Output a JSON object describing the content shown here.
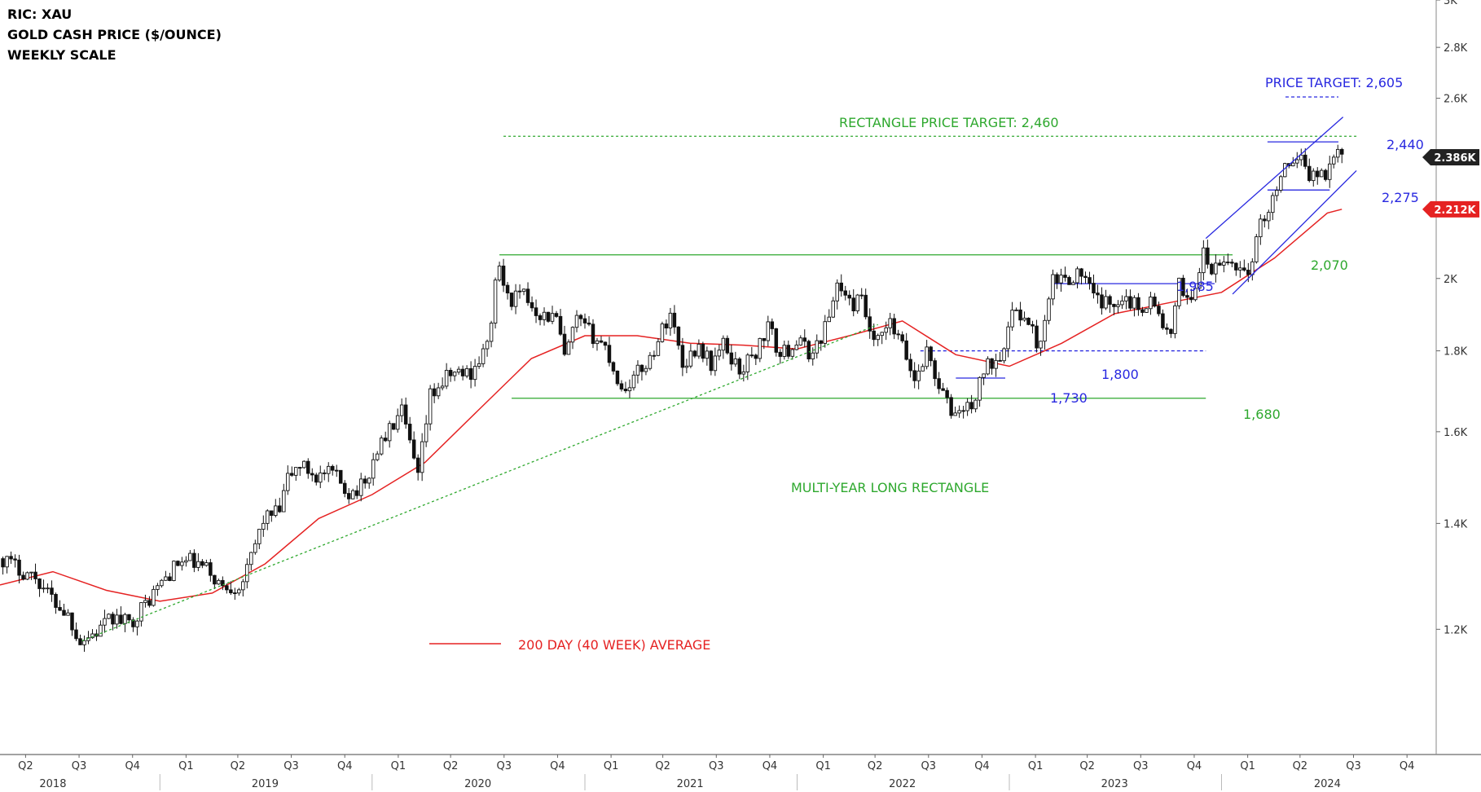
{
  "header": {
    "ric": "RIC: XAU",
    "instrument": "GOLD CASH PRICE ($/OUNCE)",
    "scale": "WEEKLY SCALE"
  },
  "chart_data": {
    "type": "candlestick",
    "y_scale": "log",
    "ylim": [
      1000,
      3000
    ],
    "y_ticks": [
      {
        "value": 1200,
        "label": "1.2K"
      },
      {
        "value": 1400,
        "label": "1.4K"
      },
      {
        "value": 1600,
        "label": "1.6K"
      },
      {
        "value": 1800,
        "label": "1.8K"
      },
      {
        "value": 2000,
        "label": "2K"
      },
      {
        "value": 2200,
        "label": "2.2K"
      },
      {
        "value": 2400,
        "label": "2.4K"
      },
      {
        "value": 2600,
        "label": "2.6K"
      },
      {
        "value": 2800,
        "label": "2.8K"
      },
      {
        "value": 3000,
        "label": "3K"
      }
    ],
    "x_range": [
      "2018-04-01",
      "2024-12-31"
    ],
    "quarters": [
      {
        "label": "Q2",
        "date": "2018-05-15"
      },
      {
        "label": "Q3",
        "date": "2018-08-15"
      },
      {
        "label": "Q4",
        "date": "2018-11-15"
      },
      {
        "label": "Q1",
        "date": "2019-02-15"
      },
      {
        "label": "Q2",
        "date": "2019-05-15"
      },
      {
        "label": "Q3",
        "date": "2019-08-15"
      },
      {
        "label": "Q4",
        "date": "2019-11-15"
      },
      {
        "label": "Q1",
        "date": "2020-02-15"
      },
      {
        "label": "Q2",
        "date": "2020-05-15"
      },
      {
        "label": "Q3",
        "date": "2020-08-15"
      },
      {
        "label": "Q4",
        "date": "2020-11-15"
      },
      {
        "label": "Q1",
        "date": "2021-02-15"
      },
      {
        "label": "Q2",
        "date": "2021-05-15"
      },
      {
        "label": "Q3",
        "date": "2021-08-15"
      },
      {
        "label": "Q4",
        "date": "2021-11-15"
      },
      {
        "label": "Q1",
        "date": "2022-02-15"
      },
      {
        "label": "Q2",
        "date": "2022-05-15"
      },
      {
        "label": "Q3",
        "date": "2022-08-15"
      },
      {
        "label": "Q4",
        "date": "2022-11-15"
      },
      {
        "label": "Q1",
        "date": "2023-02-15"
      },
      {
        "label": "Q2",
        "date": "2023-05-15"
      },
      {
        "label": "Q3",
        "date": "2023-08-15"
      },
      {
        "label": "Q4",
        "date": "2023-11-15"
      },
      {
        "label": "Q1",
        "date": "2024-02-15"
      },
      {
        "label": "Q2",
        "date": "2024-05-15"
      },
      {
        "label": "Q3",
        "date": "2024-08-15"
      },
      {
        "label": "Q4",
        "date": "2024-11-15"
      }
    ],
    "years": [
      {
        "label": "2018",
        "date": "2018-07-01"
      },
      {
        "label": "2019",
        "date": "2019-07-01"
      },
      {
        "label": "2020",
        "date": "2020-07-01"
      },
      {
        "label": "2021",
        "date": "2021-07-01"
      },
      {
        "label": "2022",
        "date": "2022-07-01"
      },
      {
        "label": "2023",
        "date": "2023-07-01"
      },
      {
        "label": "2024",
        "date": "2024-07-01"
      }
    ],
    "price_path": [
      [
        "2018-04-06",
        1330
      ],
      [
        "2018-05-04",
        1310
      ],
      [
        "2018-06-01",
        1295
      ],
      [
        "2018-06-29",
        1255
      ],
      [
        "2018-07-27",
        1225
      ],
      [
        "2018-08-17",
        1180
      ],
      [
        "2018-09-14",
        1195
      ],
      [
        "2018-10-12",
        1220
      ],
      [
        "2018-11-09",
        1210
      ],
      [
        "2018-12-07",
        1245
      ],
      [
        "2019-01-04",
        1285
      ],
      [
        "2019-02-01",
        1320
      ],
      [
        "2019-02-22",
        1325
      ],
      [
        "2019-03-22",
        1310
      ],
      [
        "2019-04-19",
        1275
      ],
      [
        "2019-05-17",
        1280
      ],
      [
        "2019-05-31",
        1305
      ],
      [
        "2019-06-28",
        1410
      ],
      [
        "2019-07-26",
        1425
      ],
      [
        "2019-08-09",
        1495
      ],
      [
        "2019-08-30",
        1525
      ],
      [
        "2019-09-27",
        1500
      ],
      [
        "2019-10-25",
        1505
      ],
      [
        "2019-11-22",
        1465
      ],
      [
        "2019-12-20",
        1480
      ],
      [
        "2020-01-10",
        1560
      ],
      [
        "2020-02-21",
        1645
      ],
      [
        "2020-03-13",
        1530
      ],
      [
        "2020-03-20",
        1495
      ],
      [
        "2020-04-10",
        1685
      ],
      [
        "2020-05-15",
        1740
      ],
      [
        "2020-06-19",
        1745
      ],
      [
        "2020-07-17",
        1810
      ],
      [
        "2020-07-31",
        1975
      ],
      [
        "2020-08-07",
        2035
      ],
      [
        "2020-08-21",
        1940
      ],
      [
        "2020-09-18",
        1950
      ],
      [
        "2020-10-16",
        1900
      ],
      [
        "2020-11-13",
        1885
      ],
      [
        "2020-11-27",
        1780
      ],
      [
        "2020-12-18",
        1880
      ],
      [
        "2021-01-08",
        1850
      ],
      [
        "2021-02-05",
        1810
      ],
      [
        "2021-03-05",
        1700
      ],
      [
        "2021-03-26",
        1730
      ],
      [
        "2021-04-23",
        1780
      ],
      [
        "2021-05-28",
        1905
      ],
      [
        "2021-06-18",
        1765
      ],
      [
        "2021-07-16",
        1815
      ],
      [
        "2021-08-06",
        1765
      ],
      [
        "2021-08-27",
        1815
      ],
      [
        "2021-09-24",
        1750
      ],
      [
        "2021-10-22",
        1795
      ],
      [
        "2021-11-12",
        1865
      ],
      [
        "2021-12-03",
        1785
      ],
      [
        "2021-12-31",
        1825
      ],
      [
        "2022-01-28",
        1790
      ],
      [
        "2022-02-25",
        1890
      ],
      [
        "2022-03-11",
        1990
      ],
      [
        "2022-04-01",
        1925
      ],
      [
        "2022-04-22",
        1935
      ],
      [
        "2022-05-13",
        1810
      ],
      [
        "2022-06-10",
        1870
      ],
      [
        "2022-07-01",
        1810
      ],
      [
        "2022-07-22",
        1725
      ],
      [
        "2022-08-12",
        1800
      ],
      [
        "2022-09-02",
        1710
      ],
      [
        "2022-09-23",
        1645
      ],
      [
        "2022-10-21",
        1655
      ],
      [
        "2022-11-04",
        1680
      ],
      [
        "2022-11-18",
        1750
      ],
      [
        "2022-12-16",
        1795
      ],
      [
        "2023-01-13",
        1920
      ],
      [
        "2023-02-03",
        1865
      ],
      [
        "2023-02-24",
        1810
      ],
      [
        "2023-03-17",
        1990
      ],
      [
        "2023-04-14",
        2005
      ],
      [
        "2023-05-05",
        2015
      ],
      [
        "2023-05-26",
        1945
      ],
      [
        "2023-06-23",
        1920
      ],
      [
        "2023-07-14",
        1955
      ],
      [
        "2023-08-11",
        1915
      ],
      [
        "2023-09-01",
        1940
      ],
      [
        "2023-09-29",
        1850
      ],
      [
        "2023-10-06",
        1830
      ],
      [
        "2023-10-20",
        1980
      ],
      [
        "2023-11-10",
        1940
      ],
      [
        "2023-12-01",
        2070
      ],
      [
        "2023-12-15",
        2020
      ],
      [
        "2024-01-12",
        2050
      ],
      [
        "2024-02-09",
        2025
      ],
      [
        "2024-02-23",
        2035
      ],
      [
        "2024-03-08",
        2180
      ],
      [
        "2024-03-29",
        2235
      ],
      [
        "2024-04-12",
        2340
      ],
      [
        "2024-04-26",
        2335
      ],
      [
        "2024-05-10",
        2355
      ],
      [
        "2024-05-17",
        2415
      ],
      [
        "2024-05-31",
        2325
      ],
      [
        "2024-06-14",
        2330
      ],
      [
        "2024-06-28",
        2325
      ],
      [
        "2024-07-12",
        2410
      ],
      [
        "2024-07-26",
        2385
      ]
    ],
    "moving_average": [
      [
        "2018-04-01",
        1280
      ],
      [
        "2018-07-01",
        1305
      ],
      [
        "2018-10-01",
        1270
      ],
      [
        "2019-01-01",
        1250
      ],
      [
        "2019-04-01",
        1265
      ],
      [
        "2019-07-01",
        1320
      ],
      [
        "2019-10-01",
        1410
      ],
      [
        "2020-01-01",
        1460
      ],
      [
        "2020-04-01",
        1530
      ],
      [
        "2020-07-01",
        1650
      ],
      [
        "2020-10-01",
        1780
      ],
      [
        "2021-01-01",
        1840
      ],
      [
        "2021-04-01",
        1840
      ],
      [
        "2021-07-01",
        1820
      ],
      [
        "2021-10-01",
        1815
      ],
      [
        "2022-01-01",
        1805
      ],
      [
        "2022-04-01",
        1840
      ],
      [
        "2022-07-01",
        1880
      ],
      [
        "2022-10-01",
        1790
      ],
      [
        "2023-01-01",
        1760
      ],
      [
        "2023-04-01",
        1820
      ],
      [
        "2023-07-01",
        1900
      ],
      [
        "2023-10-01",
        1930
      ],
      [
        "2024-01-01",
        1960
      ],
      [
        "2024-04-01",
        2060
      ],
      [
        "2024-07-01",
        2200
      ],
      [
        "2024-07-26",
        2212
      ]
    ],
    "last_price": {
      "value": 2386,
      "label": "2.386K",
      "color": "#222222"
    },
    "ma_last": {
      "value": 2212,
      "label": "2.212K",
      "color": "#e52222"
    },
    "colors": {
      "candle": "#111111",
      "moving_average": "#e52222",
      "rectangle": "#2ea82e",
      "channel": "#2929e0",
      "target": "#2929e0"
    },
    "levels": [
      {
        "name": "rectangle-top",
        "value": 2070,
        "from": "2020-08-07",
        "to": "2024-01-20",
        "color": "green",
        "style": "solid"
      },
      {
        "name": "rectangle-bottom",
        "value": 1680,
        "from": "2020-08-28",
        "to": "2023-12-05",
        "color": "green",
        "style": "solid"
      },
      {
        "name": "rectangle-target",
        "value": 2460,
        "from": "2020-08-14",
        "to": "2024-08-20",
        "color": "green",
        "style": "dotted"
      },
      {
        "name": "level-1985",
        "value": 1985,
        "from": "2023-03-15",
        "to": "2023-12-20",
        "color": "blue",
        "style": "solid"
      },
      {
        "name": "level-1800",
        "value": 1800,
        "from": "2022-08-01",
        "to": "2023-12-05",
        "color": "blue",
        "style": "dashed"
      },
      {
        "name": "level-1730",
        "value": 1730,
        "from": "2022-10-01",
        "to": "2022-12-25",
        "color": "blue",
        "style": "solid"
      },
      {
        "name": "level-2440",
        "value": 2440,
        "from": "2024-03-20",
        "to": "2024-07-20",
        "color": "blue",
        "style": "solid"
      },
      {
        "name": "level-2275",
        "value": 2275,
        "from": "2024-03-20",
        "to": "2024-07-05",
        "color": "blue",
        "style": "solid"
      },
      {
        "name": "price-target-2605",
        "value": 2605,
        "from": "2024-04-20",
        "to": "2024-07-20",
        "color": "blue",
        "style": "dashed"
      }
    ],
    "trendlines": [
      {
        "name": "support-trendline",
        "from": [
          "2018-08-20",
          1180
        ],
        "to": [
          "2022-05-20",
          1870
        ],
        "color": "green",
        "style": "dotted"
      },
      {
        "name": "channel-upper",
        "from": [
          "2023-12-05",
          2120
        ],
        "to": [
          "2024-07-28",
          2530
        ],
        "color": "blue",
        "style": "solid"
      },
      {
        "name": "channel-lower",
        "from": [
          "2024-01-20",
          1955
        ],
        "to": [
          "2024-08-20",
          2340
        ],
        "color": "blue",
        "style": "solid"
      }
    ],
    "annotations": [
      {
        "name": "price-target-label",
        "text": "PRICE TARGET: 2,605",
        "color": "blue"
      },
      {
        "name": "rectangle-target-label",
        "text": "RECTANGLE PRICE TARGET: 2,460",
        "color": "green"
      },
      {
        "name": "level-2440-label",
        "text": "2,440",
        "color": "blue"
      },
      {
        "name": "level-2275-label",
        "text": "2,275",
        "color": "blue"
      },
      {
        "name": "level-2070-label",
        "text": "2,070",
        "color": "green"
      },
      {
        "name": "level-1985-label",
        "text": "1,985",
        "color": "blue"
      },
      {
        "name": "level-1800-label",
        "text": "1,800",
        "color": "blue"
      },
      {
        "name": "level-1730-label",
        "text": "1,730",
        "color": "blue"
      },
      {
        "name": "level-1680-label",
        "text": "1,680",
        "color": "green"
      },
      {
        "name": "rectangle-label",
        "text": "MULTI-YEAR LONG RECTANGLE",
        "color": "green"
      },
      {
        "name": "ma-legend-label",
        "text": "200 DAY (40 WEEK) AVERAGE",
        "color": "red"
      }
    ]
  }
}
